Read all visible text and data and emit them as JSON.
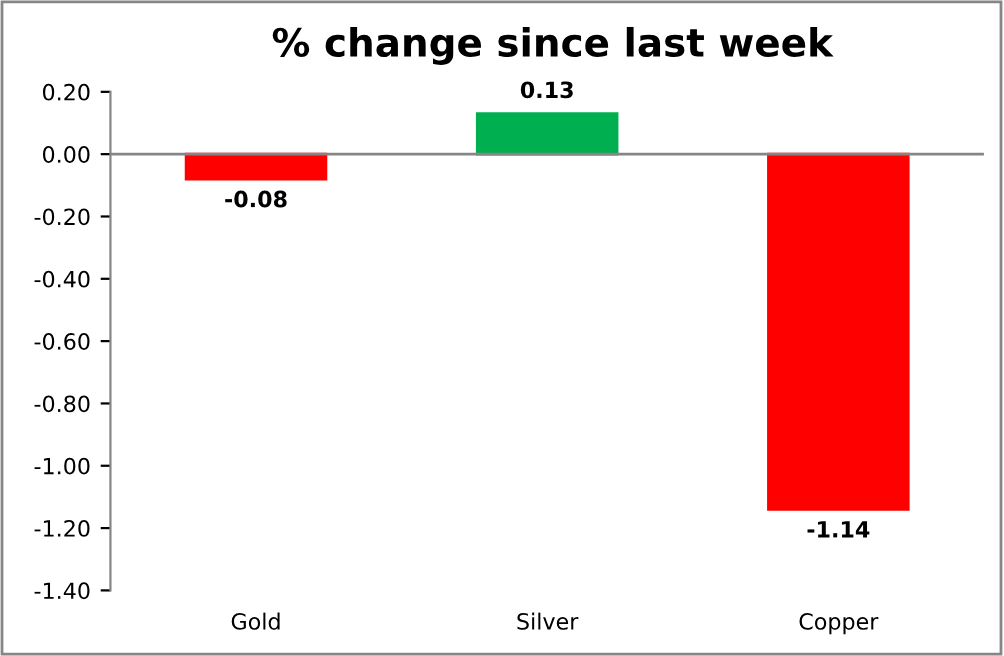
{
  "chart_data": {
    "type": "bar",
    "title": "% change since last week",
    "categories": [
      "Gold",
      "Silver",
      "Copper"
    ],
    "values": [
      -0.08,
      0.13,
      -1.14
    ],
    "colors": [
      "#ff0000",
      "#00b050",
      "#ff0000"
    ],
    "ylim": [
      -1.4,
      0.2
    ],
    "yticks": [
      {
        "value": 0.2,
        "label": "0.20"
      },
      {
        "value": 0,
        "label": "0.00"
      },
      {
        "value": -0.2,
        "label": "-0.20"
      },
      {
        "value": -0.4,
        "label": "-0.40"
      },
      {
        "value": -0.6,
        "label": "-0.60"
      },
      {
        "value": -0.8,
        "label": "-0.80"
      },
      {
        "value": -1.0,
        "label": "-1.00"
      },
      {
        "value": -1.2,
        "label": "-1.20"
      },
      {
        "value": -1.4,
        "label": "-1.40"
      }
    ],
    "ref_lines": [
      {
        "axis": "y",
        "value": 0,
        "color": "#868686"
      }
    ],
    "data_labels": true,
    "grid": false,
    "legend": false
  }
}
